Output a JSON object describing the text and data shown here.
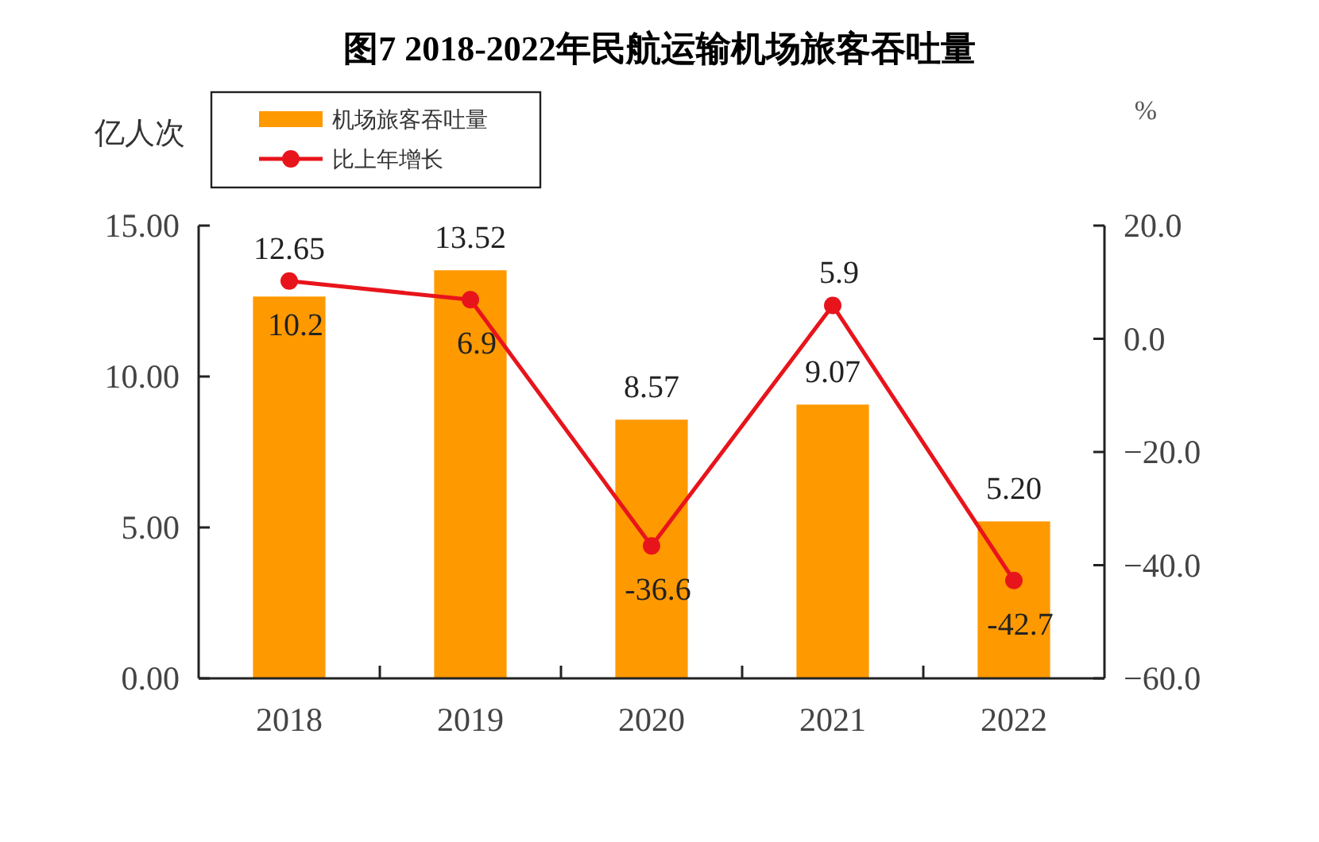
{
  "chart_data": {
    "type": "bar",
    "title": "图7 2018-2022年民航运输机场旅客吞吐量",
    "ylabel": "亿人次",
    "y2label": "%",
    "categories": [
      "2018",
      "2019",
      "2020",
      "2021",
      "2022"
    ],
    "series": [
      {
        "name": "机场旅客吞吐量",
        "color": "#ff9900",
        "values": [
          12.65,
          13.52,
          8.57,
          9.07,
          5.2
        ],
        "value_labels": [
          "12.65",
          "13.52",
          "8.57",
          "9.07",
          "5.20"
        ]
      },
      {
        "name": "比上年增长",
        "type": "line",
        "axis": "y2",
        "color": "#e8141b",
        "values": [
          10.2,
          6.9,
          -36.6,
          5.9,
          -42.7
        ],
        "value_labels": [
          "10.2",
          "6.9",
          "-36.6",
          "5.9",
          "-42.7"
        ]
      }
    ],
    "ylim": [
      0,
      15
    ],
    "yticks": [
      {
        "value": 0,
        "label": "0.00"
      },
      {
        "value": 5,
        "label": "5.00"
      },
      {
        "value": 10,
        "label": "10.00"
      },
      {
        "value": 15,
        "label": "15.00"
      }
    ],
    "y2lim": [
      -60,
      20
    ],
    "y2ticks": [
      {
        "value": -60,
        "label": "−60.0"
      },
      {
        "value": -40,
        "label": "−40.0"
      },
      {
        "value": -20,
        "label": "−20.0"
      },
      {
        "value": 0,
        "label": "0.0"
      },
      {
        "value": 20,
        "label": "20.0"
      }
    ],
    "data_labels": true,
    "marker": "circle",
    "legend": "top left",
    "grid": false
  }
}
